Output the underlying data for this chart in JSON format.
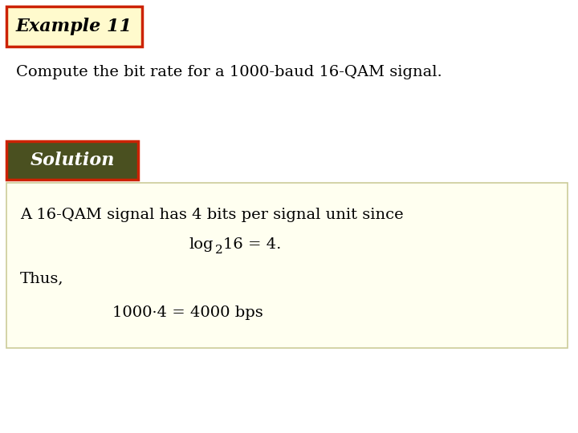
{
  "bg_color": "#ffffff",
  "example_title": "Example 11",
  "example_title_box_facecolor": "#fffacd",
  "example_title_box_edgecolor": "#cc2200",
  "example_title_fontsize": 16,
  "problem_text": "Compute the bit rate for a 1000-baud 16-QAM signal.",
  "problem_fontsize": 14,
  "solution_label": "Solution",
  "solution_label_facecolor": "#4a5020",
  "solution_label_edgecolor": "#cc2200",
  "solution_label_fontcolor": "#ffffff",
  "solution_label_fontsize": 16,
  "solution_box_facecolor": "#fffff0",
  "solution_box_edgecolor": "#cccc99",
  "solution_line1": "A 16-QAM signal has 4 bits per signal unit since",
  "solution_line3": "Thus,",
  "solution_line4": "1000·4 = 4000 bps",
  "solution_fontsize": 14
}
